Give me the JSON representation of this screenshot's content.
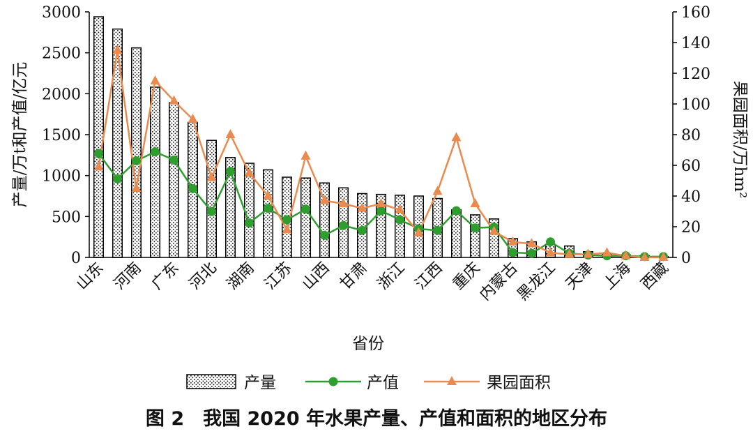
{
  "chart_data": {
    "type": "bar+line",
    "xlabel": "省份",
    "ylabel_left": "产量/万t和产值/亿元",
    "ylabel_right": "果园面积/万hm²",
    "ylim_left": [
      0,
      3000
    ],
    "ylim_right": [
      0,
      160
    ],
    "yticks_left": [
      "0",
      "500",
      "1000",
      "1500",
      "2000",
      "2500",
      "3000"
    ],
    "yticks_right": [
      "0",
      "20",
      "40",
      "60",
      "80",
      "100",
      "120",
      "140",
      "160"
    ],
    "grid": false,
    "legend_position": "bottom",
    "categories": [
      "山东",
      "",
      "河南",
      "",
      "广东",
      "",
      "河北",
      "",
      "湖南",
      "",
      "江苏",
      "",
      "山西",
      "",
      "甘肃",
      "",
      "浙江",
      "",
      "江西",
      "",
      "重庆",
      "",
      "内蒙古",
      "",
      "黑龙江",
      "",
      "天津",
      "",
      "上海",
      "",
      "西藏"
    ],
    "series": [
      {
        "name": "产量",
        "kind": "bar",
        "axis": "left",
        "color": "#000000",
        "values": [
          2940,
          2790,
          2560,
          2080,
          1890,
          1650,
          1430,
          1220,
          1150,
          1070,
          980,
          970,
          910,
          850,
          780,
          770,
          760,
          750,
          720,
          580,
          520,
          470,
          230,
          190,
          160,
          140,
          70,
          50,
          30,
          20,
          10
        ]
      },
      {
        "name": "产值",
        "kind": "line",
        "axis": "left",
        "color": "#2e9e2e",
        "values": [
          1270,
          960,
          1180,
          1290,
          1190,
          840,
          560,
          1050,
          420,
          600,
          460,
          590,
          270,
          390,
          330,
          570,
          460,
          350,
          330,
          570,
          360,
          370,
          60,
          50,
          190,
          50,
          30,
          20,
          20,
          10,
          10
        ]
      },
      {
        "name": "果园面积",
        "kind": "line",
        "axis": "right",
        "color": "#e98a4e",
        "values": [
          59,
          135,
          45,
          115,
          102,
          90,
          52,
          80,
          55,
          40,
          18,
          66,
          37,
          35,
          32,
          35,
          31,
          16,
          43,
          78,
          35,
          17,
          10,
          9,
          3,
          2,
          2,
          3,
          1,
          0,
          0
        ]
      }
    ]
  },
  "caption": "图 2　我国 2020 年水果产量、产值和面积的地区分布"
}
